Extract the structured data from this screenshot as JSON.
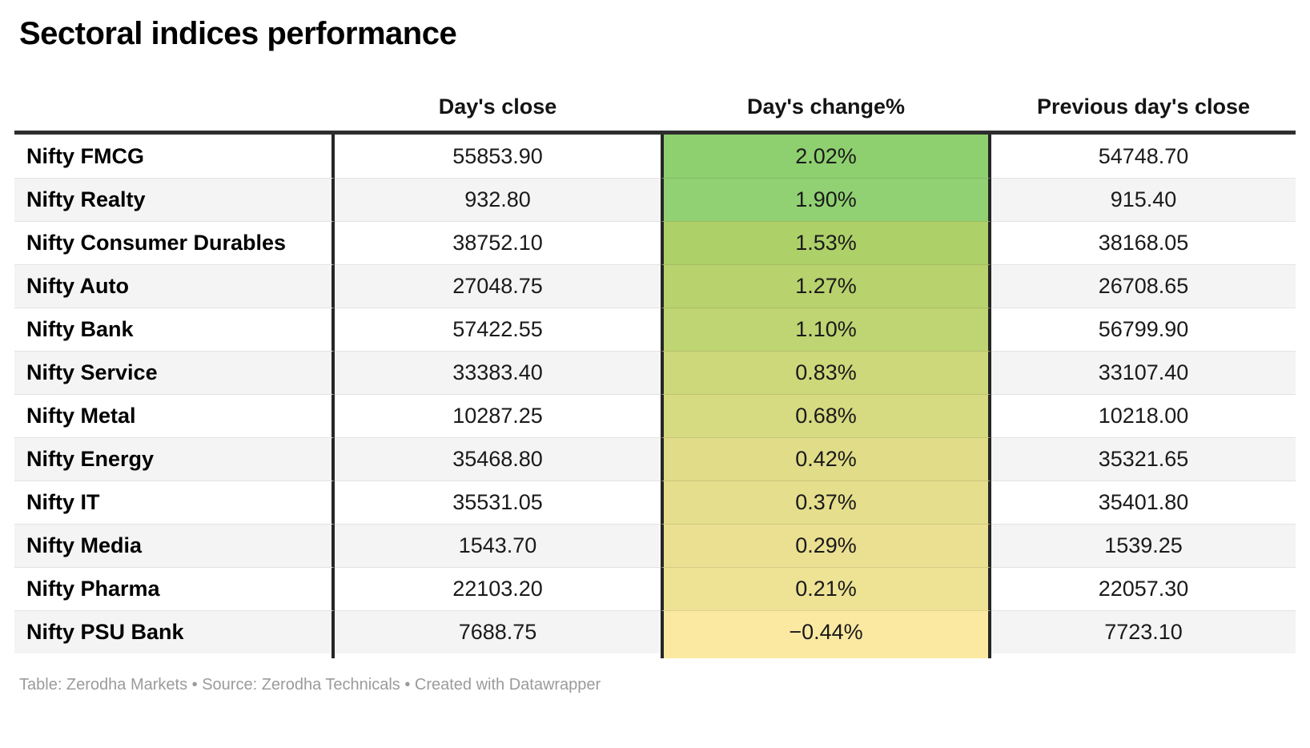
{
  "title": "Sectoral indices performance",
  "columns": [
    "",
    "Day's close",
    "Day's change%",
    "Previous day's close"
  ],
  "rows": [
    {
      "name": "Nifty FMCG",
      "close": "55853.90",
      "change": "2.02%",
      "prev": "54748.70",
      "color": "#8ed06f"
    },
    {
      "name": "Nifty Realty",
      "close": "932.80",
      "change": "1.90%",
      "prev": "915.40",
      "color": "#91d173"
    },
    {
      "name": "Nifty Consumer Durables",
      "close": "38752.10",
      "change": "1.53%",
      "prev": "38168.05",
      "color": "#aed069"
    },
    {
      "name": "Nifty Auto",
      "close": "27048.75",
      "change": "1.27%",
      "prev": "26708.65",
      "color": "#b8d26d"
    },
    {
      "name": "Nifty Bank",
      "close": "57422.55",
      "change": "1.10%",
      "prev": "56799.90",
      "color": "#bfd472"
    },
    {
      "name": "Nifty Service",
      "close": "33383.40",
      "change": "0.83%",
      "prev": "33107.40",
      "color": "#cdd87b"
    },
    {
      "name": "Nifty Metal",
      "close": "10287.25",
      "change": "0.68%",
      "prev": "10218.00",
      "color": "#d6da81"
    },
    {
      "name": "Nifty Energy",
      "close": "35468.80",
      "change": "0.42%",
      "prev": "35321.65",
      "color": "#e0dc88"
    },
    {
      "name": "Nifty IT",
      "close": "35531.05",
      "change": "0.37%",
      "prev": "35401.80",
      "color": "#e5de8c"
    },
    {
      "name": "Nifty Media",
      "close": "1543.70",
      "change": "0.29%",
      "prev": "1539.25",
      "color": "#ebe092"
    },
    {
      "name": "Nifty Pharma",
      "close": "22103.20",
      "change": "0.21%",
      "prev": "22057.30",
      "color": "#eee295"
    },
    {
      "name": "Nifty PSU Bank",
      "close": "7688.75",
      "change": "−0.44%",
      "prev": "7723.10",
      "color": "#fbe9a1"
    }
  ],
  "extension_color": "#fbe9a1",
  "style": {
    "stripe_color": "#f4f4f4",
    "dark_border_color": "#262626",
    "header_rule_color": "#2e2e2e",
    "footer_text_color": "#9b9b9b"
  },
  "footer": "Table: Zerodha Markets • Source: Zerodha Technicals • Created with Datawrapper",
  "chart_data": {
    "type": "table",
    "title": "Sectoral indices performance",
    "columns": [
      "Day's close",
      "Day's change%",
      "Previous day's close"
    ],
    "categories": [
      "Nifty FMCG",
      "Nifty Realty",
      "Nifty Consumer Durables",
      "Nifty Auto",
      "Nifty Bank",
      "Nifty Service",
      "Nifty Metal",
      "Nifty Energy",
      "Nifty IT",
      "Nifty Media",
      "Nifty Pharma",
      "Nifty PSU Bank"
    ],
    "series": [
      {
        "name": "Day's close",
        "values": [
          55853.9,
          932.8,
          38752.1,
          27048.75,
          57422.55,
          33383.4,
          10287.25,
          35468.8,
          35531.05,
          1543.7,
          22103.2,
          7688.75
        ]
      },
      {
        "name": "Day's change%",
        "values": [
          2.02,
          1.9,
          1.53,
          1.27,
          1.1,
          0.83,
          0.68,
          0.42,
          0.37,
          0.29,
          0.21,
          -0.44
        ]
      },
      {
        "name": "Previous day's close",
        "values": [
          54748.7,
          915.4,
          38168.05,
          26708.65,
          56799.9,
          33107.4,
          10218.0,
          35321.65,
          35401.8,
          1539.25,
          22057.3,
          7723.1
        ]
      }
    ],
    "layout_hints": {
      "heatmap_column": "Day's change%",
      "heatmap_scale": "green (high) to yellow (low)",
      "row_striping": true,
      "footer": "Table: Zerodha Markets • Source: Zerodha Technicals • Created with Datawrapper"
    }
  }
}
